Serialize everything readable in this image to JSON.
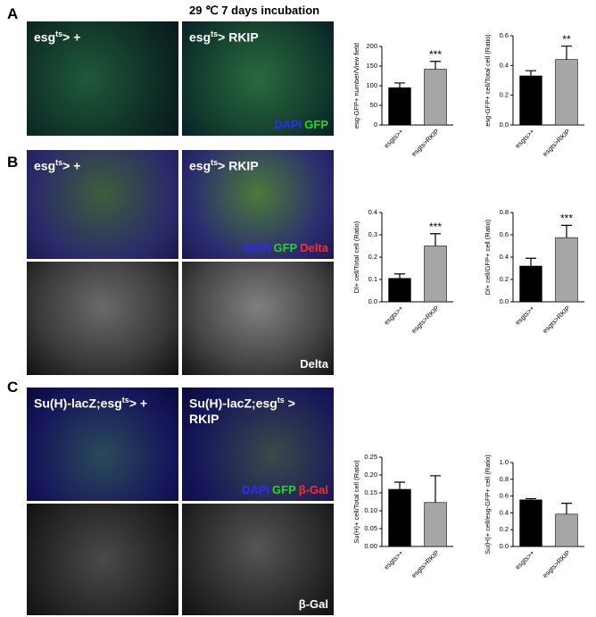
{
  "panel_labels": [
    "A",
    "B",
    "C"
  ],
  "header": "29 ℃ 7 days incubation",
  "image_labels": [
    {
      "base": "esg",
      "sup": "ts",
      "rest": "> +"
    },
    {
      "base": "esg",
      "sup": "ts",
      "rest": "> RKIP"
    },
    {
      "base": "esg",
      "sup": "ts",
      "rest": "> +"
    },
    {
      "base": "esg",
      "sup": "ts",
      "rest": "> RKIP"
    },
    {
      "base": "Su(H)-lacZ;esg",
      "sup": "ts",
      "rest": "> +"
    },
    {
      "base": "Su(H)-lacZ;esg",
      "sup": "ts",
      "rest": " >",
      "line2": "RKIP"
    }
  ],
  "overlays": [
    [
      {
        "text": "DAPI",
        "color": "#2b2bff"
      },
      {
        "text": "GFP",
        "color": "#2fd12f"
      }
    ],
    [
      {
        "text": "DAPI",
        "color": "#2b2bff"
      },
      {
        "text": "GFP",
        "color": "#2fd12f"
      },
      {
        "text": "Delta",
        "color": "#ff2b2b"
      }
    ],
    [
      {
        "text": "Delta",
        "color": "#ffffff"
      }
    ],
    [
      {
        "text": "DAPI",
        "color": "#2b2bff"
      },
      {
        "text": "GFP",
        "color": "#2fd12f"
      },
      {
        "text": "β-Gal",
        "color": "#ff2b2b"
      }
    ],
    [
      {
        "text": "β-Gal",
        "color": "#ffffff"
      }
    ]
  ],
  "chart_data": [
    {
      "type": "bar",
      "ylabel": "esg-GFP+ number/View field",
      "categories": [
        "esgts>+",
        "esgts>RKIP"
      ],
      "values": [
        95,
        142
      ],
      "errors": [
        12,
        20
      ],
      "colors": [
        "#000000",
        "#a6a6a6"
      ],
      "annotation": "***",
      "ylim": [
        0,
        200
      ],
      "yticks": [
        0,
        50,
        100,
        150,
        200
      ]
    },
    {
      "type": "bar",
      "ylabel": "esg-GFP+ cell/Total cell (Ratio)",
      "categories": [
        "esgts>+",
        "esgts>RKIP"
      ],
      "values": [
        0.33,
        0.44
      ],
      "errors": [
        0.035,
        0.09
      ],
      "colors": [
        "#000000",
        "#a6a6a6"
      ],
      "annotation": "**",
      "ylim": [
        0,
        0.6
      ],
      "yticks": [
        {
          "value": 0,
          "label": "0.0"
        },
        0.2,
        0.4,
        0.6
      ]
    },
    {
      "type": "bar",
      "ylabel": "Dl+ cell/Total cell (Ratio)",
      "categories": [
        "esgts>+",
        "esgts>RKIP"
      ],
      "values": [
        0.105,
        0.25
      ],
      "errors": [
        0.02,
        0.055
      ],
      "colors": [
        "#000000",
        "#a6a6a6"
      ],
      "annotation": "***",
      "ylim": [
        0,
        0.4
      ],
      "yticks": [
        {
          "value": 0,
          "label": "0.0"
        },
        0.1,
        0.2,
        0.3,
        0.4
      ]
    },
    {
      "type": "bar",
      "ylabel": "Dl+ cell/GFP+ cell (Ratio)",
      "categories": [
        "esgts>+",
        "esgts>RKIP"
      ],
      "values": [
        0.32,
        0.575
      ],
      "errors": [
        0.07,
        0.11
      ],
      "colors": [
        "#000000",
        "#a6a6a6"
      ],
      "annotation": "***",
      "ylim": [
        0,
        0.8
      ],
      "yticks": [
        {
          "value": 0,
          "label": "0.0"
        },
        0.2,
        0.4,
        0.6,
        0.8
      ]
    },
    {
      "type": "bar",
      "ylabel": "Su(H)+ cell/Total cell (Ratio)",
      "categories": [
        "esgts>+",
        "esgts>RKIP"
      ],
      "values": [
        0.16,
        0.123
      ],
      "errors": [
        0.02,
        0.075
      ],
      "colors": [
        "#000000",
        "#a6a6a6"
      ],
      "ylim": [
        0,
        0.25
      ],
      "yticks": [
        {
          "value": 0,
          "label": "0.00"
        },
        0.05,
        {
          "value": 0.1,
          "label": "0.10"
        },
        0.15,
        {
          "value": 0.2,
          "label": "0.20"
        },
        0.25
      ]
    },
    {
      "type": "bar",
      "ylabel": "Su(H)+ cell/esg-GFP+ cell (Ratio)",
      "categories": [
        "esgts>+",
        "esgts>RKIP"
      ],
      "values": [
        0.555,
        0.385
      ],
      "errors": [
        0.015,
        0.13
      ],
      "colors": [
        "#000000",
        "#a6a6a6"
      ],
      "ylim": [
        0,
        1
      ],
      "yticks": [
        {
          "value": 0,
          "label": "0.0"
        },
        0.2,
        0.4,
        0.6,
        0.8,
        {
          "value": 1,
          "label": "1.0"
        }
      ]
    }
  ]
}
